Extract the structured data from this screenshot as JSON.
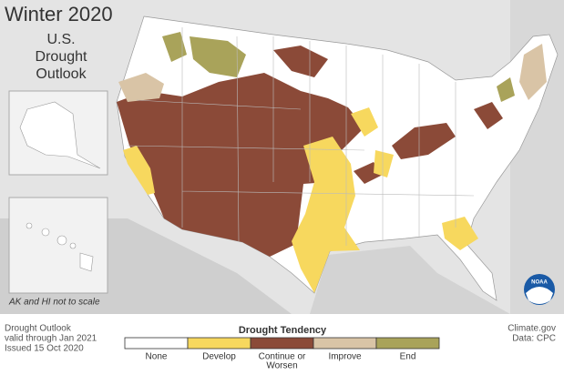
{
  "header": {
    "title": "Winter 2020",
    "subtitle_lines": [
      "U.S.",
      "Drought",
      "Outlook"
    ]
  },
  "map_note": "AK and HI not to scale",
  "legend": {
    "title": "Drought Tendency",
    "items": [
      {
        "label": "None",
        "color": "#ffffff"
      },
      {
        "label": "Develop",
        "color": "#f7d85e"
      },
      {
        "label_lines": [
          "Continue or",
          "Worsen"
        ],
        "color": "#8b4a38"
      },
      {
        "label": "Improve",
        "color": "#d9c4a6"
      },
      {
        "label": "End",
        "color": "#a9a35a"
      }
    ]
  },
  "footer": {
    "left_lines": [
      "Drought Outlook",
      "valid through Jan 2021",
      "Issued 15 Oct 2020"
    ],
    "right_lines": [
      "Climate.gov",
      "Data: CPC"
    ]
  },
  "logo": "NOAA"
}
